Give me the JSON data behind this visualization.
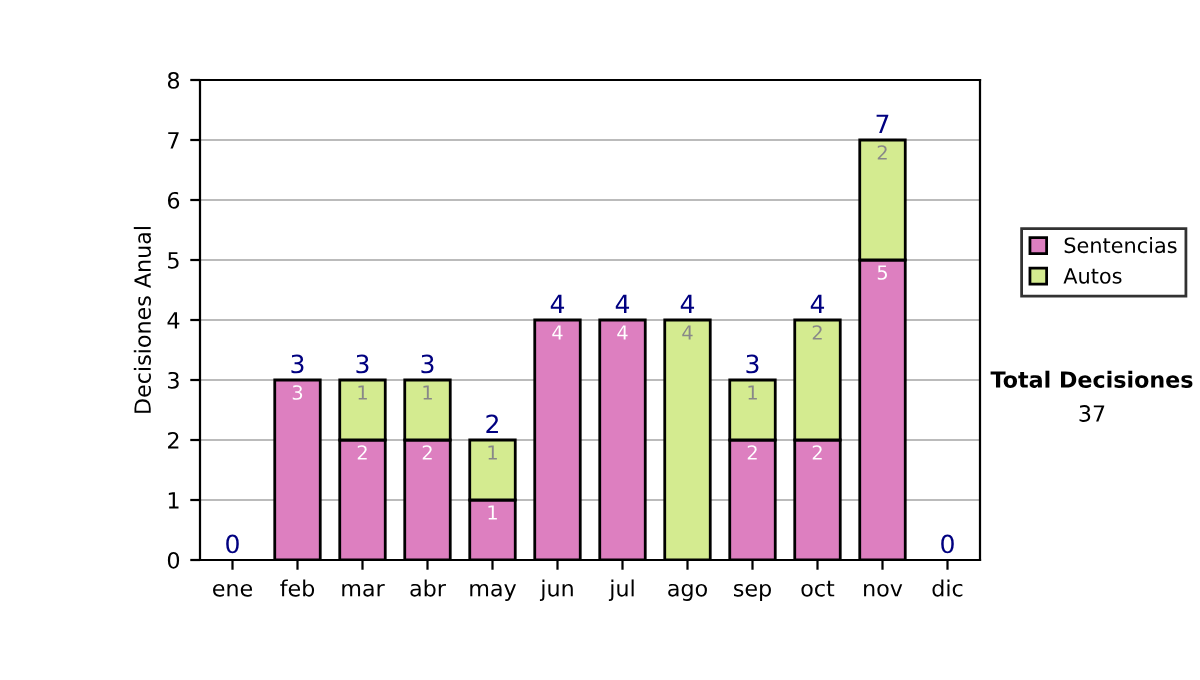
{
  "chart_data": {
    "type": "bar",
    "stacked": true,
    "ylabel": "Decisiones Anual",
    "categories": [
      "ene",
      "feb",
      "mar",
      "abr",
      "may",
      "jun",
      "jul",
      "ago",
      "sep",
      "oct",
      "nov",
      "dic"
    ],
    "series": [
      {
        "name": "Sentencias",
        "color": "#dd7fc0",
        "values": [
          0,
          3,
          2,
          2,
          1,
          4,
          4,
          0,
          2,
          2,
          5,
          0
        ],
        "value_labels": [
          null,
          "3",
          "2",
          "2",
          "1",
          "4",
          "4",
          null,
          "2",
          "2",
          "5",
          null
        ]
      },
      {
        "name": "Autos",
        "color": "#d4eb90",
        "values": [
          0,
          0,
          1,
          1,
          1,
          0,
          0,
          4,
          1,
          2,
          2,
          0
        ],
        "value_labels": [
          null,
          null,
          "1",
          "1",
          "1",
          null,
          null,
          "4",
          "1",
          "2",
          "2",
          null
        ]
      }
    ],
    "totals": [
      "0",
      "3",
      "3",
      "3",
      "2",
      "4",
      "4",
      "4",
      "3",
      "4",
      "7",
      "0"
    ],
    "ylim": [
      0,
      8
    ],
    "yticks": [
      0,
      1,
      2,
      3,
      4,
      5,
      6,
      7,
      8
    ],
    "grid": "y",
    "legend": "right",
    "annotations": [
      "Total Decisiones",
      "37"
    ]
  }
}
